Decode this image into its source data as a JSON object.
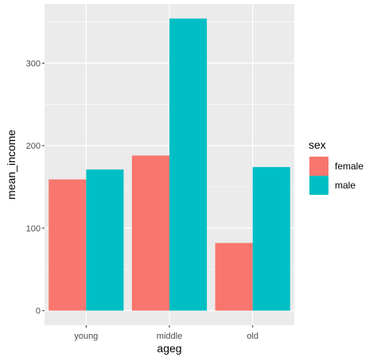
{
  "chart_data": {
    "type": "bar",
    "categories": [
      "young",
      "middle",
      "old"
    ],
    "series": [
      {
        "name": "female",
        "values": [
          159,
          188,
          82
        ],
        "color": "#F8766D"
      },
      {
        "name": "male",
        "values": [
          171,
          354,
          174
        ],
        "color": "#00BFC4"
      }
    ],
    "xlabel": "ageg",
    "ylabel": "mean_income",
    "ylim": [
      -17.7,
      371.7
    ],
    "yticks": [
      "0",
      "100",
      "200",
      "300"
    ],
    "legend": {
      "title": "sex",
      "placement": "right"
    },
    "grid": true,
    "panel_background": "#EBEBEB",
    "grid_color": "#FFFFFF"
  }
}
